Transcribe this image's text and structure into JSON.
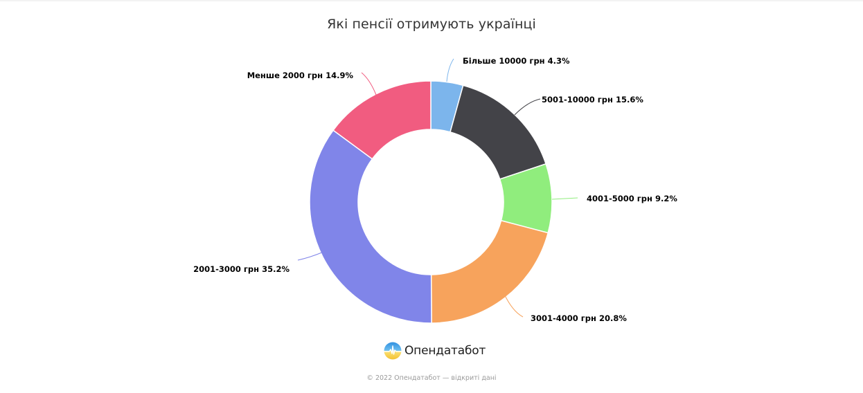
{
  "page": {
    "title": "Які пенсії отримують українці",
    "brand_name": "Опендатабот",
    "footer": "© 2022 Опендатабот — відкриті дані"
  },
  "icons": {
    "brand_logo": "opendatabot-logo-icon"
  },
  "colors": {
    "more_10000": "#7cb5ec",
    "r5001_10000": "#434348",
    "r4001_5000": "#90ed7d",
    "r3001_4000": "#f7a35c",
    "r2001_3000": "#8085e9",
    "less_2000": "#f15c80",
    "separator": "#ffffff"
  },
  "labels": {
    "more_10000": "Більше 10000 грн 4.3%",
    "r5001_10000": "5001-10000 грн 15.6%",
    "r4001_5000": "4001-5000 грн 9.2%",
    "r3001_4000": "3001-4000 грн 20.8%",
    "r2001_3000": "2001-3000 грн 35.2%",
    "less_2000": "Менше 2000 грн 14.9%"
  },
  "chart_data": {
    "type": "pie",
    "variant": "donut",
    "title": "Які пенсії отримують українці",
    "categories": [
      "Більше 10000 грн",
      "5001-10000 грн",
      "4001-5000 грн",
      "3001-4000 грн",
      "2001-3000 грн",
      "Менше 2000 грн"
    ],
    "values": [
      4.3,
      15.6,
      9.2,
      20.8,
      35.2,
      14.9
    ],
    "unit": "%",
    "colors": [
      "#7cb5ec",
      "#434348",
      "#90ed7d",
      "#f7a35c",
      "#8085e9",
      "#f15c80"
    ],
    "start_angle": 0,
    "direction": "clockwise",
    "data_labels": true,
    "legend": false
  }
}
